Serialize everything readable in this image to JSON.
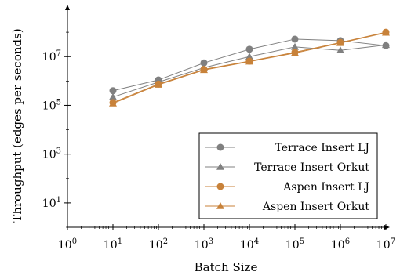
{
  "chart_data": {
    "type": "line",
    "xlabel": "Batch Size",
    "ylabel": "Throughput (edges per seconds)",
    "x_scale": "log",
    "y_scale": "log",
    "xlim": [
      1,
      10000000
    ],
    "ylim": [
      1,
      1000000000
    ],
    "x_ticks": [
      {
        "base": "10",
        "exp": "0",
        "value": 1
      },
      {
        "base": "10",
        "exp": "1",
        "value": 10
      },
      {
        "base": "10",
        "exp": "2",
        "value": 100
      },
      {
        "base": "10",
        "exp": "3",
        "value": 1000
      },
      {
        "base": "10",
        "exp": "4",
        "value": 10000
      },
      {
        "base": "10",
        "exp": "5",
        "value": 100000
      },
      {
        "base": "10",
        "exp": "6",
        "value": 1000000
      },
      {
        "base": "10",
        "exp": "7",
        "value": 10000000
      }
    ],
    "y_ticks": [
      {
        "base": "10",
        "exp": "1",
        "value": 10
      },
      {
        "base": "10",
        "exp": "3",
        "value": 1000
      },
      {
        "base": "10",
        "exp": "5",
        "value": 100000
      },
      {
        "base": "10",
        "exp": "7",
        "value": 10000000
      }
    ],
    "x": [
      10,
      100,
      1000,
      10000,
      100000,
      1000000,
      10000000
    ],
    "series": [
      {
        "name": "Terrace Insert LJ",
        "marker": "circle",
        "color": "#808080",
        "values": [
          400000,
          1100000,
          5500000,
          20000000,
          52000000,
          45000000,
          28000000
        ]
      },
      {
        "name": "Terrace Insert Orkut",
        "marker": "triangle",
        "color": "#808080",
        "values": [
          220000,
          900000,
          3500000,
          10000000,
          25000000,
          18000000,
          30000000
        ]
      },
      {
        "name": "Aspen Insert LJ",
        "marker": "circle",
        "color": "#c8823a",
        "values": [
          130000,
          750000,
          3000000,
          6500000,
          15000000,
          38000000,
          100000000
        ]
      },
      {
        "name": "Aspen Insert Orkut",
        "marker": "triangle",
        "color": "#c8823a",
        "values": [
          120000,
          700000,
          2800000,
          6200000,
          14000000,
          36000000,
          95000000
        ]
      }
    ],
    "legend_position": "bottom-right",
    "grid": false
  }
}
